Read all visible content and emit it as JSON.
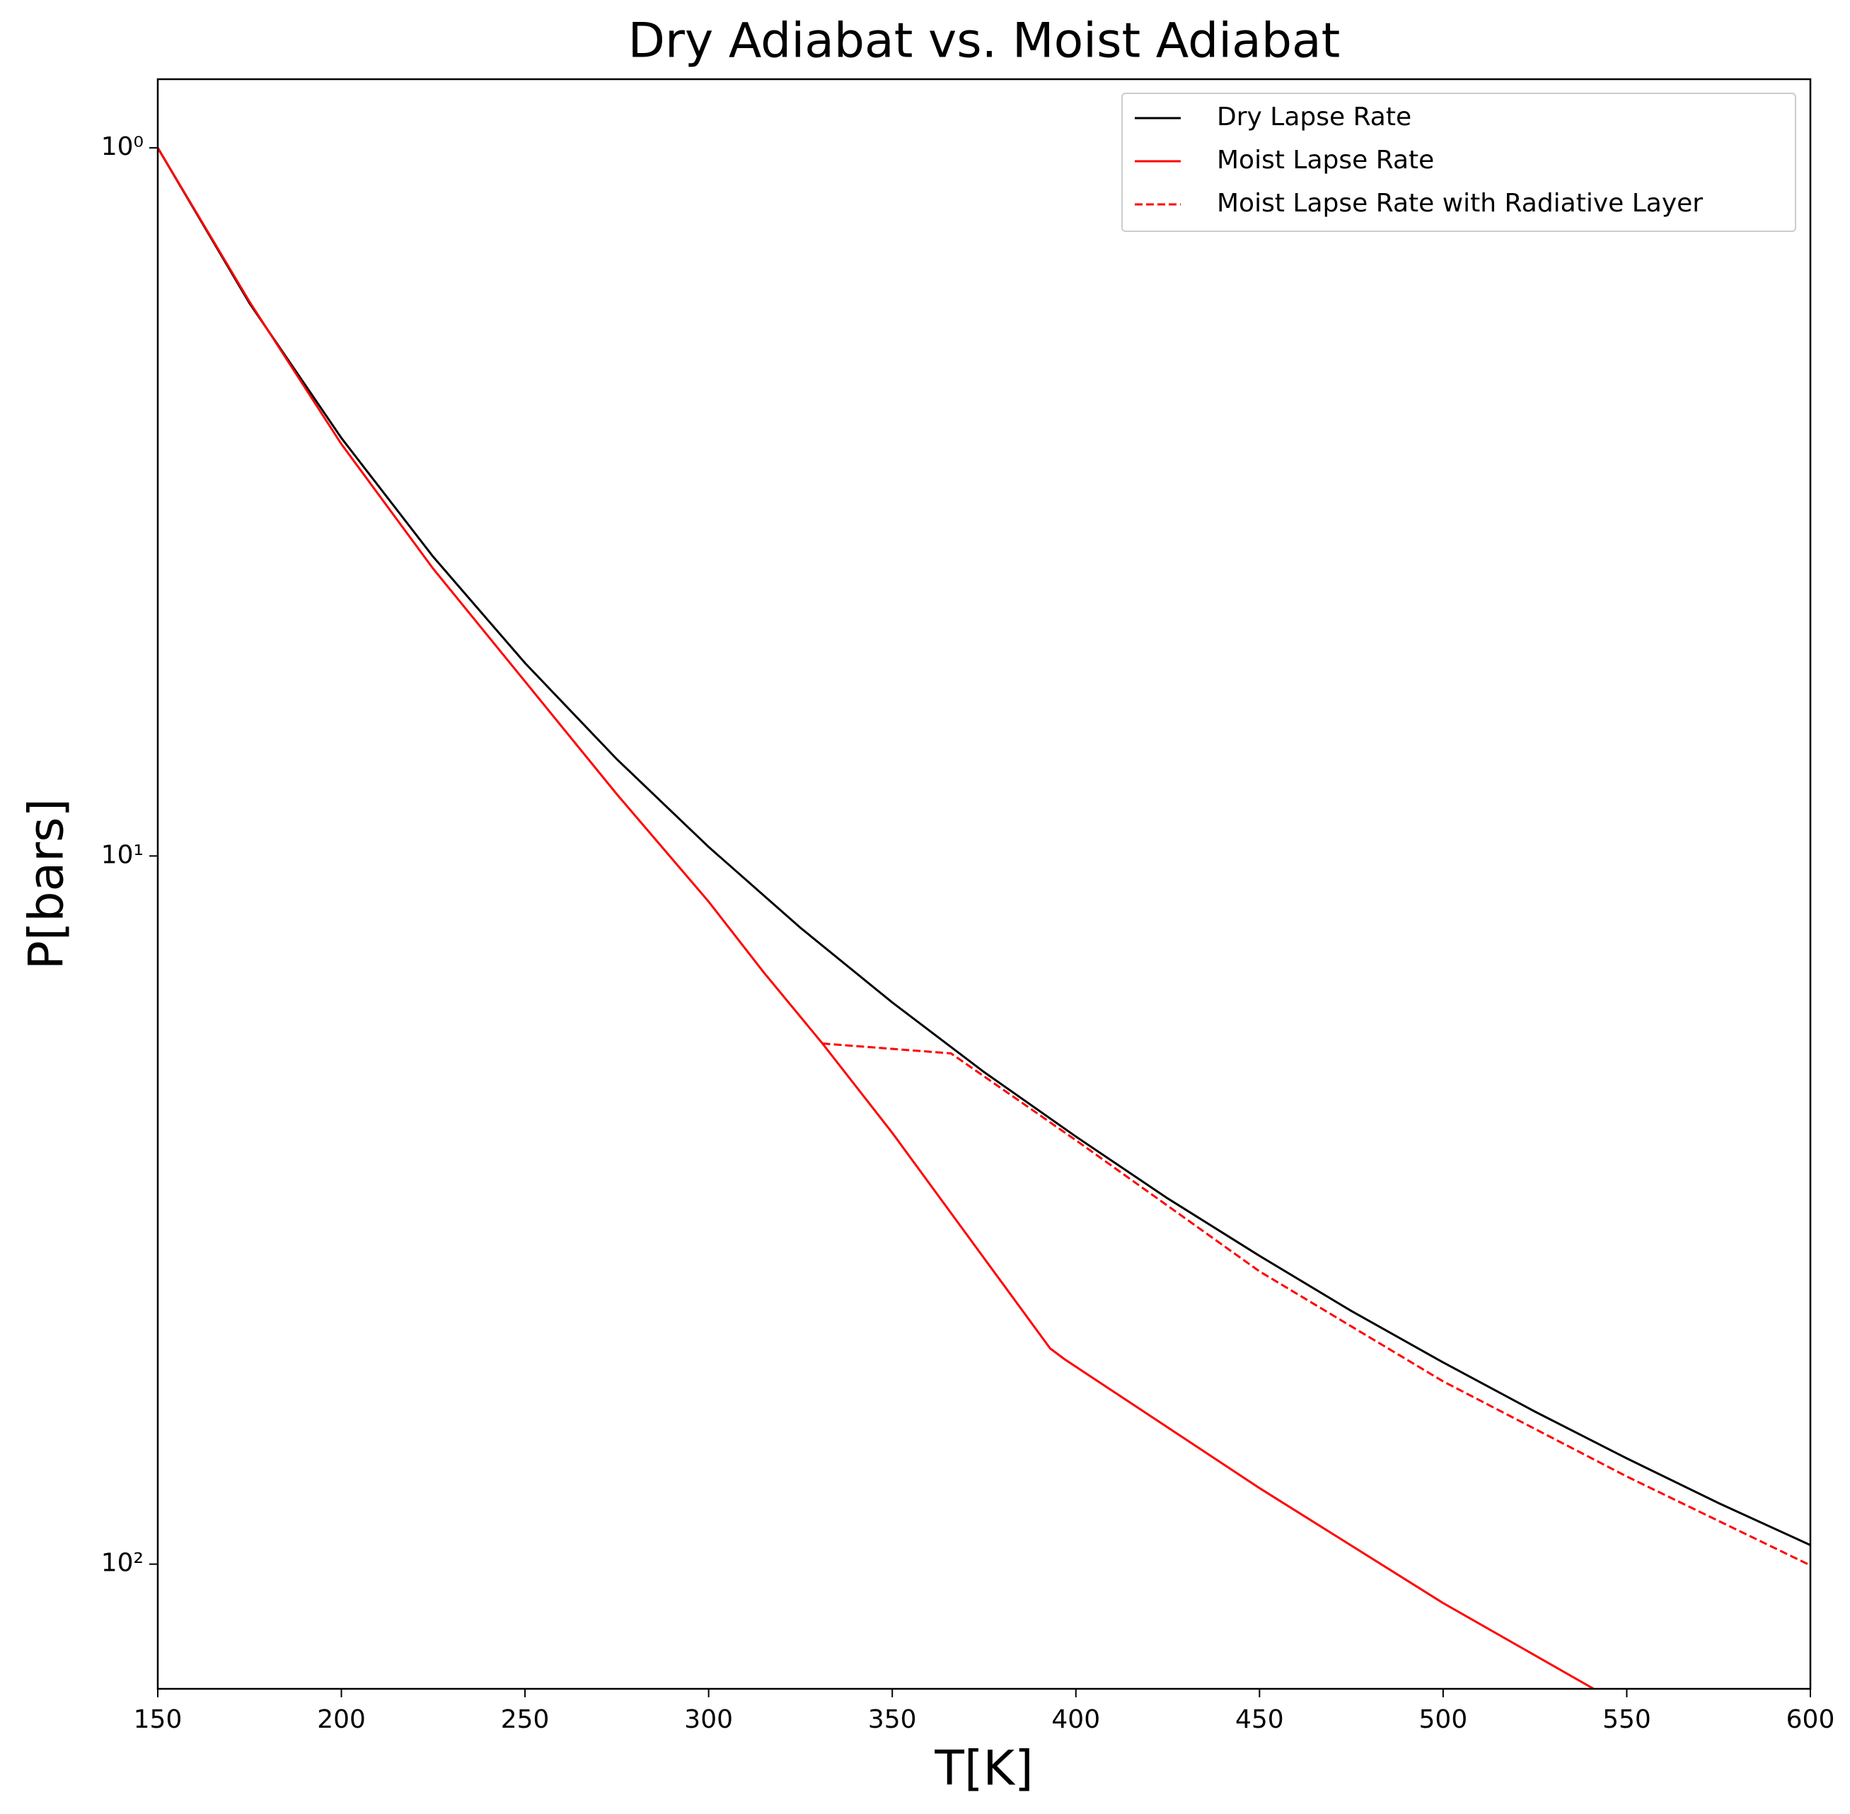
{
  "chart_data": {
    "type": "line",
    "title": "Dry Adiabat vs. Moist Adiabat",
    "x_label": "T[K]",
    "y_label": "P[bars]",
    "xlim": [
      150,
      600
    ],
    "xticks": [
      150,
      200,
      250,
      300,
      350,
      400,
      450,
      500,
      550,
      600
    ],
    "ylim": [
      150,
      0.8
    ],
    "log_y": true,
    "yticks": [
      {
        "value": 1,
        "label": "10⁰"
      },
      {
        "value": 10,
        "label": "10¹"
      },
      {
        "value": 100,
        "label": "10²"
      }
    ],
    "legend": "upper right",
    "series": [
      {
        "name": "Dry Lapse Rate",
        "color": "#000000",
        "dash": false,
        "x": [
          150,
          175,
          200,
          225,
          250,
          275,
          300,
          325,
          350,
          375,
          400,
          425,
          450,
          475,
          500,
          525,
          550,
          575,
          600
        ],
        "values": [
          1,
          1.658,
          2.569,
          3.78,
          5.34,
          7.3,
          9.71,
          12.63,
          16.1,
          20.19,
          24.9,
          30.45,
          36.7,
          43.9,
          51.9,
          60.9,
          70.9,
          82.0,
          94.0
        ]
      },
      {
        "name": "Moist Lapse Rate",
        "color": "#ff0000",
        "dash": false,
        "x": [
          150,
          175,
          200,
          225,
          250,
          275,
          300,
          315,
          331,
          350,
          393,
          397,
          450,
          500,
          541
        ],
        "values": [
          1,
          1.65,
          2.62,
          3.93,
          5.67,
          8.18,
          11.6,
          14.6,
          18.4,
          24.6,
          49.6,
          51.4,
          78.1,
          113.5,
          150
        ]
      },
      {
        "name": "Moist Lapse Rate with Radiative Layer",
        "color": "#ff0000",
        "dash": true,
        "x": [
          331,
          366,
          400,
          450,
          500,
          550,
          600
        ],
        "values": [
          18.4,
          19.0,
          25.2,
          38.6,
          55.2,
          75.2,
          100.4
        ]
      }
    ]
  }
}
